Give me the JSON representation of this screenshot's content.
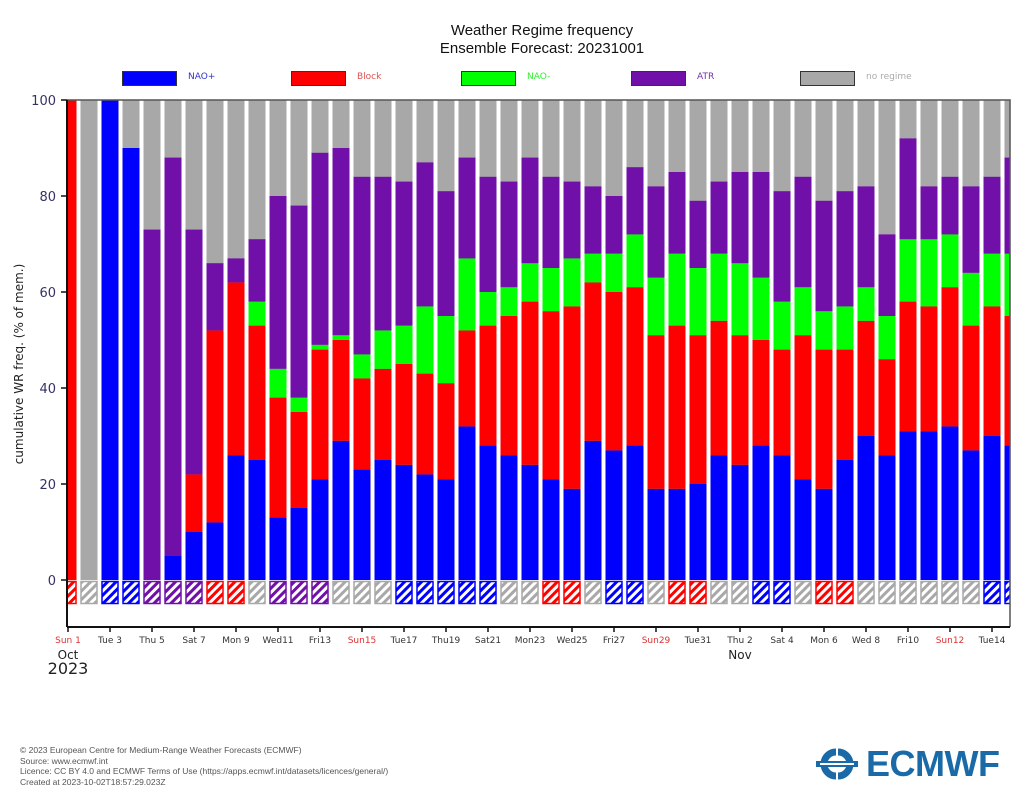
{
  "header": {
    "title_line1": "Weather Regime frequency",
    "title_line2": "Ensemble Forecast: 20231001"
  },
  "colors": {
    "NAO+": "#0000ff",
    "Block": "#ff0000",
    "NAO-": "#00ff00",
    "ATR": "#7010a8",
    "no regime": "#a8a8a8",
    "weekend_label": "#e03030",
    "weekday_label": "#333333",
    "tick_label": "#333366"
  },
  "legend": [
    {
      "key": "NAO+",
      "label": "NAO+",
      "color": "#0000ff",
      "text_color": "#3333cc"
    },
    {
      "key": "Block",
      "label": "Block",
      "color": "#ff0000",
      "text_color": "#e05050"
    },
    {
      "key": "NAO-",
      "label": "NAO-",
      "color": "#00ff00",
      "text_color": "#33ee33"
    },
    {
      "key": "ATR",
      "label": "ATR",
      "color": "#7010a8",
      "text_color": "#7030a8"
    },
    {
      "key": "no regime",
      "label": "no regime",
      "color": "#a8a8a8",
      "text_color": "#aaaaaa"
    }
  ],
  "chart_data": {
    "type": "bar",
    "stacked": true,
    "title": "Weather Regime frequency\nEnsemble Forecast: 20231001",
    "xlabel": "",
    "ylabel": "cumulative WR freq. (% of mem.)",
    "ylim": [
      -10,
      100
    ],
    "yticks": [
      0,
      20,
      40,
      60,
      80,
      100
    ],
    "legend_position": "top",
    "x_tick_labels": [
      {
        "label": "Sun 1",
        "weekend": true
      },
      {
        "label": "Tue 3",
        "weekend": false
      },
      {
        "label": "Thu 5",
        "weekend": false
      },
      {
        "label": "Sat 7",
        "weekend": false
      },
      {
        "label": "Mon 9",
        "weekend": false
      },
      {
        "label": "Wed11",
        "weekend": false
      },
      {
        "label": "Fri13",
        "weekend": false
      },
      {
        "label": "Sun15",
        "weekend": true
      },
      {
        "label": "Tue17",
        "weekend": false
      },
      {
        "label": "Thu19",
        "weekend": false
      },
      {
        "label": "Sat21",
        "weekend": false
      },
      {
        "label": "Mon23",
        "weekend": false
      },
      {
        "label": "Wed25",
        "weekend": false
      },
      {
        "label": "Fri27",
        "weekend": false
      },
      {
        "label": "Sun29",
        "weekend": true
      },
      {
        "label": "Tue31",
        "weekend": false
      },
      {
        "label": "Thu 2",
        "weekend": false
      },
      {
        "label": "Sat 4",
        "weekend": false
      },
      {
        "label": "Mon 6",
        "weekend": false
      },
      {
        "label": "Wed 8",
        "weekend": false
      },
      {
        "label": "Fri10",
        "weekend": false
      },
      {
        "label": "Sun12",
        "weekend": true
      },
      {
        "label": "Tue14",
        "weekend": false
      }
    ],
    "month_labels": [
      {
        "label": "Oct",
        "day_index": 0
      },
      {
        "label": "Nov",
        "day_index": 32
      }
    ],
    "year_label": "2023",
    "categories": [
      "2023-10-01",
      "2023-10-02",
      "2023-10-03",
      "2023-10-04",
      "2023-10-05",
      "2023-10-06",
      "2023-10-07",
      "2023-10-08",
      "2023-10-09",
      "2023-10-10",
      "2023-10-11",
      "2023-10-12",
      "2023-10-13",
      "2023-10-14",
      "2023-10-15",
      "2023-10-16",
      "2023-10-17",
      "2023-10-18",
      "2023-10-19",
      "2023-10-20",
      "2023-10-21",
      "2023-10-22",
      "2023-10-23",
      "2023-10-24",
      "2023-10-25",
      "2023-10-26",
      "2023-10-27",
      "2023-10-28",
      "2023-10-29",
      "2023-10-30",
      "2023-10-31",
      "2023-11-01",
      "2023-11-02",
      "2023-11-03",
      "2023-11-04",
      "2023-11-05",
      "2023-11-06",
      "2023-11-07",
      "2023-11-08",
      "2023-11-09",
      "2023-11-10",
      "2023-11-11",
      "2023-11-12",
      "2023-11-13",
      "2023-11-14",
      "2023-11-15"
    ],
    "series": [
      {
        "name": "NAO+",
        "values": [
          0,
          0,
          100,
          90,
          0,
          5,
          10,
          12,
          26,
          25,
          13,
          15,
          21,
          29,
          23,
          25,
          24,
          22,
          21,
          32,
          28,
          26,
          24,
          21,
          19,
          29,
          27,
          28,
          19,
          19,
          20,
          26,
          24,
          28,
          26,
          21,
          19,
          25,
          30,
          26,
          31,
          31,
          32,
          27,
          30,
          28
        ]
      },
      {
        "name": "Block",
        "values": [
          100,
          0,
          0,
          0,
          0,
          0,
          12,
          40,
          36,
          28,
          25,
          20,
          27,
          21,
          19,
          19,
          21,
          21,
          20,
          20,
          25,
          29,
          34,
          35,
          38,
          33,
          33,
          33,
          32,
          34,
          31,
          28,
          27,
          22,
          22,
          30,
          29,
          23,
          24,
          20,
          27,
          26,
          29,
          26,
          27,
          27
        ]
      },
      {
        "name": "NAO-",
        "values": [
          0,
          0,
          0,
          0,
          0,
          0,
          0,
          0,
          0,
          5,
          6,
          3,
          1,
          1,
          5,
          8,
          8,
          14,
          14,
          15,
          7,
          6,
          8,
          9,
          10,
          6,
          8,
          11,
          12,
          15,
          14,
          14,
          15,
          13,
          10,
          10,
          8,
          9,
          7,
          9,
          13,
          14,
          11,
          11,
          11,
          13
        ]
      },
      {
        "name": "ATR",
        "values": [
          0,
          0,
          0,
          0,
          73,
          83,
          51,
          14,
          5,
          13,
          36,
          40,
          40,
          39,
          37,
          32,
          30,
          30,
          26,
          21,
          24,
          22,
          22,
          19,
          16,
          14,
          12,
          14,
          19,
          17,
          14,
          15,
          19,
          22,
          23,
          23,
          23,
          24,
          21,
          17,
          21,
          11,
          12,
          18,
          16,
          20
        ]
      }
    ],
    "remainder_series": "no regime",
    "dominant_regime": [
      "Block",
      "no regime",
      "NAO+",
      "NAO+",
      "ATR",
      "ATR",
      "ATR",
      "Block",
      "Block",
      "no regime",
      "ATR",
      "ATR",
      "ATR",
      "no regime",
      "no regime",
      "no regime",
      "NAO+",
      "NAO+",
      "NAO+",
      "NAO+",
      "NAO+",
      "no regime",
      "no regime",
      "Block",
      "Block",
      "no regime",
      "NAO+",
      "NAO+",
      "no regime",
      "Block",
      "Block",
      "no regime",
      "no regime",
      "NAO+",
      "NAO+",
      "no regime",
      "Block",
      "Block",
      "no regime",
      "no regime",
      "no regime",
      "no regime",
      "no regime",
      "no regime",
      "NAO+",
      "NAO+"
    ]
  },
  "footer": {
    "copyright": "© 2023 European Centre for Medium-Range Weather Forecasts (ECMWF)",
    "source": "Source: www.ecmwf.int",
    "licence": "Licence: CC BY 4.0 and ECMWF Terms of Use (https://apps.ecmwf.int/datasets/licences/general/)",
    "created": "Created at 2023-10-02T18:57:29.023Z"
  },
  "logo": {
    "text": "ECMWF",
    "color": "#1a6aa8"
  }
}
